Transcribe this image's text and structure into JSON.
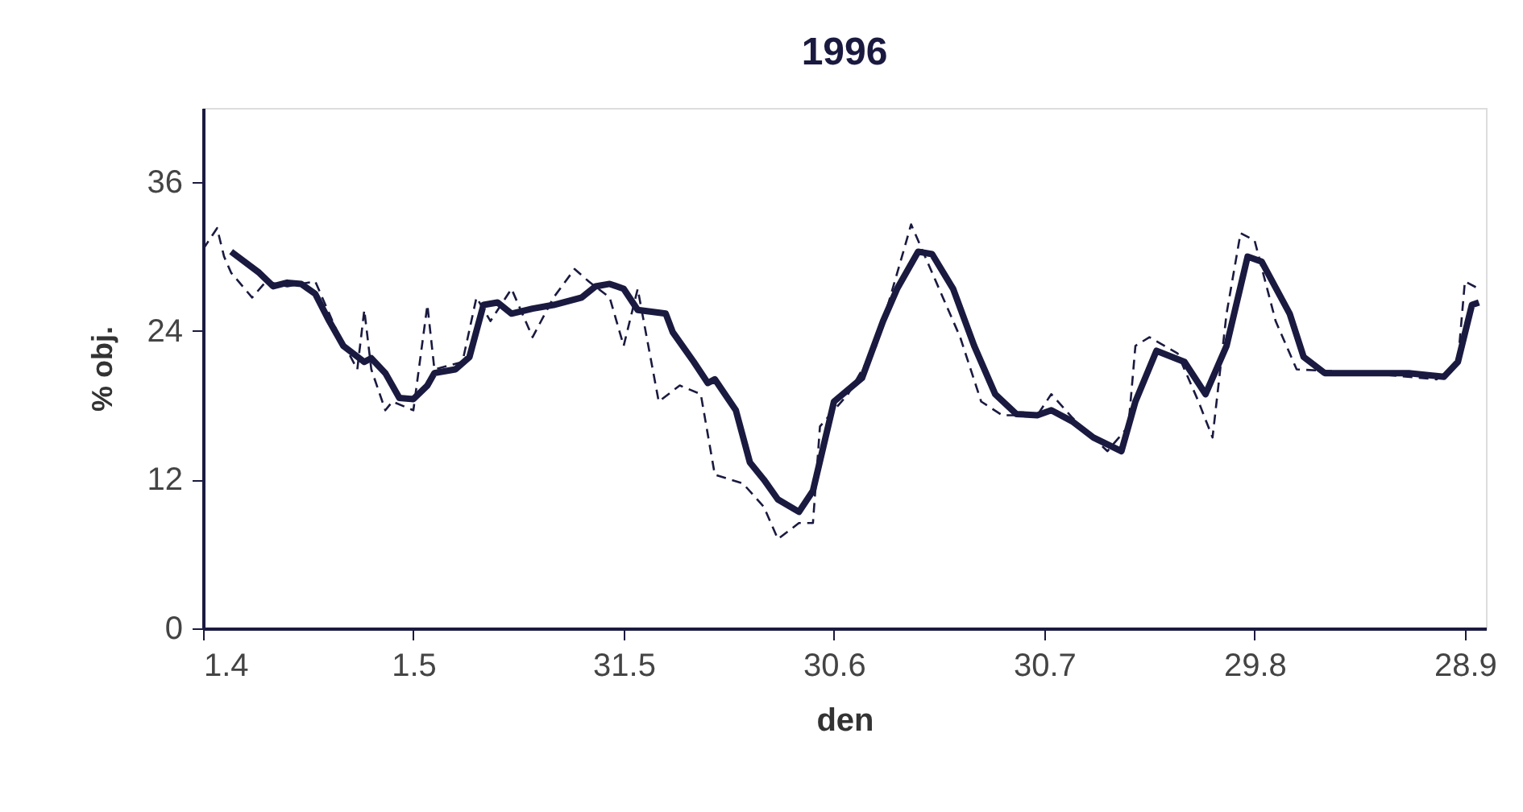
{
  "chart_data": {
    "type": "line",
    "title": "1996",
    "xlabel": "den",
    "ylabel": "% obj.",
    "xlim": [
      "1996-04-01",
      "1996-10-01"
    ],
    "ylim": [
      0,
      42
    ],
    "xticks": [
      {
        "value": "1996-04-01",
        "label": "1.4"
      },
      {
        "value": "1996-05-01",
        "label": "1.5"
      },
      {
        "value": "1996-05-31",
        "label": "31.5"
      },
      {
        "value": "1996-06-30",
        "label": "30.6"
      },
      {
        "value": "1996-07-30",
        "label": "30.7"
      },
      {
        "value": "1996-08-29",
        "label": "29.8"
      },
      {
        "value": "1996-09-28",
        "label": "28.9"
      }
    ],
    "yticks": [
      0,
      12,
      24,
      36
    ],
    "grid": false,
    "marker": "none",
    "series": [
      {
        "color": "#1a1a40",
        "line_style": "dashed",
        "x": [
          "1996-04-01",
          "1996-04-03",
          "1996-04-04",
          "1996-04-05",
          "1996-04-08",
          "1996-04-10",
          "1996-04-13",
          "1996-04-17",
          "1996-04-20",
          "1996-04-23",
          "1996-04-24",
          "1996-04-25",
          "1996-04-27",
          "1996-04-28",
          "1996-05-01",
          "1996-05-03",
          "1996-05-04",
          "1996-05-08",
          "1996-05-10",
          "1996-05-12",
          "1996-05-15",
          "1996-05-18",
          "1996-05-21",
          "1996-05-24",
          "1996-05-26",
          "1996-05-29",
          "1996-05-31",
          "1996-06-02",
          "1996-06-05",
          "1996-06-08",
          "1996-06-11",
          "1996-06-13",
          "1996-06-17",
          "1996-06-20",
          "1996-06-22",
          "1996-06-25",
          "1996-06-27",
          "1996-06-28",
          "1996-07-02",
          "1996-07-06",
          "1996-07-08",
          "1996-07-10",
          "1996-07-11",
          "1996-07-13",
          "1996-07-18",
          "1996-07-21",
          "1996-07-24",
          "1996-07-29",
          "1996-07-31",
          "1996-08-03",
          "1996-08-08",
          "1996-08-11",
          "1996-08-12",
          "1996-08-14",
          "1996-08-18",
          "1996-08-21",
          "1996-08-23",
          "1996-08-25",
          "1996-08-27",
          "1996-08-29",
          "1996-09-01",
          "1996-09-04",
          "1996-09-14",
          "1996-09-24",
          "1996-09-27",
          "1996-09-28",
          "1996-09-30"
        ],
        "values": [
          30.6,
          32.3,
          30.0,
          28.7,
          26.7,
          28.0,
          27.6,
          28.0,
          24.1,
          20.9,
          25.7,
          20.9,
          17.6,
          18.3,
          17.6,
          26.1,
          20.9,
          21.5,
          26.7,
          24.8,
          27.4,
          23.5,
          26.7,
          29.0,
          28.0,
          26.7,
          22.8,
          27.4,
          18.3,
          19.6,
          18.9,
          12.4,
          11.7,
          9.8,
          7.2,
          8.5,
          8.5,
          16.3,
          18.9,
          22.8,
          26.7,
          30.6,
          32.6,
          30.0,
          23.5,
          18.3,
          17.2,
          17.2,
          18.9,
          17.0,
          14.3,
          16.3,
          22.8,
          23.5,
          22.2,
          18.3,
          15.4,
          25.4,
          31.9,
          31.3,
          24.8,
          20.9,
          20.6,
          20.1,
          21.5,
          28.0,
          27.4
        ]
      },
      {
        "color": "#1a1a40",
        "line_style": "solid",
        "x": [
          "1996-04-05",
          "1996-04-09",
          "1996-04-11",
          "1996-04-13",
          "1996-04-15",
          "1996-04-17",
          "1996-04-19",
          "1996-04-21",
          "1996-04-24",
          "1996-04-25",
          "1996-04-27",
          "1996-04-29",
          "1996-05-01",
          "1996-05-03",
          "1996-05-04",
          "1996-05-07",
          "1996-05-09",
          "1996-05-11",
          "1996-05-13",
          "1996-05-15",
          "1996-05-18",
          "1996-05-21",
          "1996-05-25",
          "1996-05-27",
          "1996-05-29",
          "1996-05-31",
          "1996-06-02",
          "1996-06-06",
          "1996-06-07",
          "1996-06-10",
          "1996-06-12",
          "1996-06-13",
          "1996-06-16",
          "1996-06-18",
          "1996-06-20",
          "1996-06-22",
          "1996-06-25",
          "1996-06-27",
          "1996-06-30",
          "1996-07-04",
          "1996-07-07",
          "1996-07-09",
          "1996-07-12",
          "1996-07-14",
          "1996-07-17",
          "1996-07-20",
          "1996-07-23",
          "1996-07-26",
          "1996-07-29",
          "1996-07-31",
          "1996-08-03",
          "1996-08-06",
          "1996-08-10",
          "1996-08-12",
          "1996-08-15",
          "1996-08-19",
          "1996-08-22",
          "1996-08-25",
          "1996-08-28",
          "1996-08-30",
          "1996-09-03",
          "1996-09-05",
          "1996-09-08",
          "1996-09-14",
          "1996-09-20",
          "1996-09-25",
          "1996-09-27",
          "1996-09-29",
          "1996-09-30"
        ],
        "values": [
          30.4,
          28.7,
          27.6,
          27.9,
          27.8,
          27.0,
          24.8,
          22.8,
          21.5,
          21.8,
          20.6,
          18.6,
          18.5,
          19.6,
          20.6,
          20.9,
          21.9,
          26.1,
          26.3,
          25.4,
          25.8,
          26.1,
          26.7,
          27.6,
          27.8,
          27.4,
          25.7,
          25.4,
          23.9,
          21.5,
          19.8,
          20.1,
          17.6,
          13.4,
          12.0,
          10.4,
          9.4,
          11.1,
          18.3,
          20.2,
          24.8,
          27.4,
          30.4,
          30.2,
          27.4,
          22.8,
          18.9,
          17.3,
          17.2,
          17.6,
          16.7,
          15.4,
          14.3,
          18.3,
          22.4,
          21.5,
          18.9,
          22.8,
          30.0,
          29.6,
          25.4,
          21.9,
          20.6,
          20.6,
          20.6,
          20.3,
          21.5,
          26.1,
          26.3
        ]
      }
    ]
  }
}
